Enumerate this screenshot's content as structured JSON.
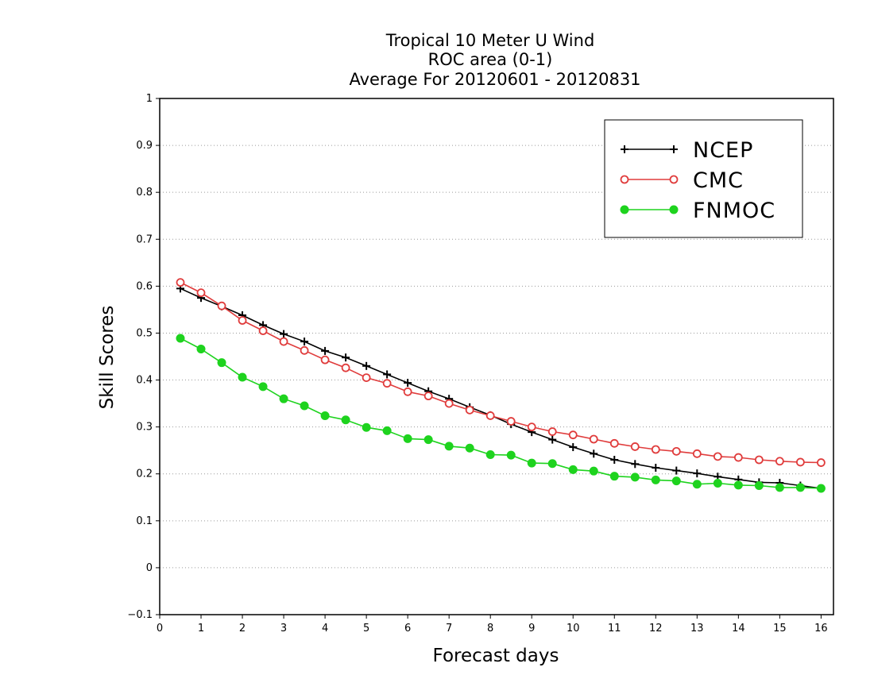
{
  "chart_data": {
    "type": "line",
    "title_lines": [
      "Tropical 10 Meter U Wind",
      "ROC area (0-1)",
      "Average For 20120601 - 20120831"
    ],
    "xlabel": "Forecast days",
    "ylabel": "Skill Scores",
    "xlim": [
      0,
      16.3
    ],
    "ylim": [
      -0.1,
      1
    ],
    "xticks": [
      "0",
      "1",
      "2",
      "3",
      "4",
      "5",
      "6",
      "7",
      "8",
      "9",
      "10",
      "11",
      "12",
      "13",
      "14",
      "15",
      "16"
    ],
    "yticks": [
      "−0.1",
      "0",
      "0.1",
      "0.2",
      "0.3",
      "0.4",
      "0.5",
      "0.6",
      "0.7",
      "0.8",
      "0.9",
      "1"
    ],
    "grid": "horizontal-dotted",
    "legend_position": "top-right",
    "x": [
      0.5,
      1,
      1.5,
      2,
      2.5,
      3,
      3.5,
      4,
      4.5,
      5,
      5.5,
      6,
      6.5,
      7,
      7.5,
      8,
      8.5,
      9,
      9.5,
      10,
      10.5,
      11,
      11.5,
      12,
      12.5,
      13,
      13.5,
      14,
      14.5,
      15,
      15.5,
      16
    ],
    "series": [
      {
        "name": "NCEP",
        "color": "#000000",
        "marker": "plus",
        "values": [
          0.595,
          0.575,
          0.557,
          0.538,
          0.517,
          0.498,
          0.482,
          0.462,
          0.448,
          0.43,
          0.412,
          0.394,
          0.376,
          0.36,
          0.342,
          0.325,
          0.306,
          0.289,
          0.273,
          0.257,
          0.243,
          0.23,
          0.221,
          0.213,
          0.207,
          0.201,
          0.194,
          0.188,
          0.182,
          0.181,
          0.175,
          0.169
        ]
      },
      {
        "name": "CMC",
        "color": "#e03c3c",
        "marker": "open-circle",
        "values": [
          0.608,
          0.586,
          0.558,
          0.527,
          0.505,
          0.482,
          0.463,
          0.443,
          0.426,
          0.405,
          0.393,
          0.375,
          0.366,
          0.35,
          0.336,
          0.324,
          0.312,
          0.3,
          0.29,
          0.283,
          0.274,
          0.265,
          0.258,
          0.252,
          0.248,
          0.243,
          0.237,
          0.235,
          0.23,
          0.227,
          0.225,
          0.224
        ]
      },
      {
        "name": "FNMOC",
        "color": "#1ed31e",
        "marker": "filled-circle",
        "values": [
          0.489,
          0.466,
          0.437,
          0.406,
          0.386,
          0.36,
          0.345,
          0.324,
          0.315,
          0.299,
          0.292,
          0.275,
          0.273,
          0.259,
          0.255,
          0.241,
          0.24,
          0.223,
          0.222,
          0.209,
          0.206,
          0.195,
          0.193,
          0.187,
          0.185,
          0.178,
          0.18,
          0.176,
          0.175,
          0.171,
          0.171,
          0.169
        ]
      }
    ]
  }
}
